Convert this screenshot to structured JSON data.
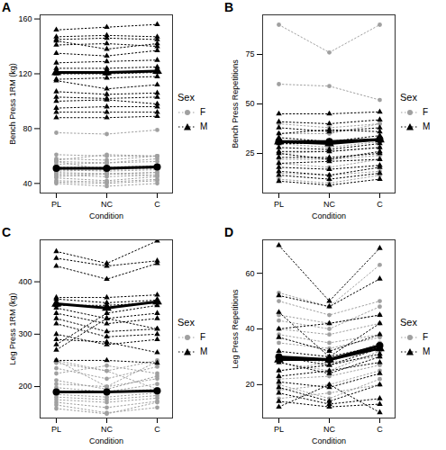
{
  "chart_data": [
    {
      "type": "line",
      "title": "A",
      "x_label": "Condition",
      "y_label": "Bench Press 1RM (kg)",
      "categories": [
        "PL",
        "NC",
        "C"
      ],
      "ylim": [
        33,
        163
      ],
      "yticks": [
        40,
        80,
        120,
        160
      ],
      "legend": "right",
      "legend_title": "Sex",
      "series": [
        {
          "name": "F",
          "color": "#a0a0a0",
          "marker": "circle",
          "line_style": "dotted",
          "values": [
            [
              77,
              76,
              79
            ],
            [
              61,
              60,
              60
            ],
            [
              58,
              57,
              60
            ],
            [
              57,
              61,
              60
            ],
            [
              56,
              55,
              58
            ],
            [
              56,
              50,
              53
            ],
            [
              54,
              55,
              56
            ],
            [
              52,
              52,
              53
            ],
            [
              50,
              51,
              51
            ],
            [
              50,
              49,
              50
            ],
            [
              49,
              50,
              51
            ],
            [
              48,
              47,
              48
            ],
            [
              47,
              47,
              48
            ],
            [
              46,
              45,
              46
            ],
            [
              45,
              47,
              46
            ],
            [
              44,
              42,
              45
            ],
            [
              42,
              41,
              43
            ],
            [
              41,
              40,
              42
            ],
            [
              40,
              38,
              40
            ]
          ],
          "mean": [
            51,
            51,
            52
          ]
        },
        {
          "name": "M",
          "color": "#000000",
          "marker": "triangle",
          "line_style": "dotted",
          "values": [
            [
              152,
              154,
              156
            ],
            [
              147,
              148,
              147
            ],
            [
              145,
              146,
              145
            ],
            [
              144,
              138,
              142
            ],
            [
              141,
              142,
              140
            ],
            [
              135,
              133,
              137
            ],
            [
              128,
              129,
              130
            ],
            [
              124,
              124,
              125
            ],
            [
              120,
              120,
              121
            ],
            [
              116,
              117,
              118
            ],
            [
              115,
              109,
              112
            ],
            [
              107,
              105,
              106
            ],
            [
              103,
              102,
              103
            ],
            [
              100,
              101,
              98
            ],
            [
              95,
              96,
              96
            ],
            [
              92,
              92,
              92
            ],
            [
              88,
              88,
              89
            ]
          ],
          "mean": [
            121,
            121,
            122
          ]
        }
      ]
    },
    {
      "type": "line",
      "title": "B",
      "x_label": "Condition",
      "y_label": "Bench Press Repetitions",
      "categories": [
        "PL",
        "NC",
        "C"
      ],
      "ylim": [
        5,
        95
      ],
      "yticks": [
        25,
        50,
        75
      ],
      "legend": "right",
      "legend_title": "Sex",
      "series": [
        {
          "name": "F",
          "color": "#a0a0a0",
          "marker": "circle",
          "line_style": "dotted",
          "values": [
            [
              90,
              76,
              90
            ],
            [
              60,
              59,
              52
            ],
            [
              40,
              38,
              40
            ],
            [
              35,
              35,
              40
            ],
            [
              30,
              28,
              31
            ],
            [
              25,
              26,
              28
            ],
            [
              22,
              22,
              24
            ],
            [
              20,
              18,
              22
            ],
            [
              15,
              14,
              16
            ],
            [
              12,
              10,
              14
            ]
          ],
          "mean": [
            31,
            31,
            32
          ]
        },
        {
          "name": "M",
          "color": "#000000",
          "marker": "triangle",
          "line_style": "dotted",
          "values": [
            [
              45,
              45,
              46
            ],
            [
              41,
              40,
              42
            ],
            [
              38,
              36,
              38
            ],
            [
              35,
              37,
              36
            ],
            [
              33,
              31,
              34
            ],
            [
              30,
              30,
              32
            ],
            [
              28,
              27,
              30
            ],
            [
              26,
              26,
              28
            ],
            [
              25,
              22,
              26
            ],
            [
              23,
              23,
              25
            ],
            [
              20,
              21,
              22
            ],
            [
              18,
              17,
              19
            ],
            [
              16,
              14,
              18
            ],
            [
              14,
              12,
              15
            ],
            [
              11,
              9,
              12
            ]
          ],
          "mean": [
            31,
            30,
            32
          ]
        }
      ]
    },
    {
      "type": "line",
      "title": "C",
      "x_label": "Condition",
      "y_label": "Leg Press 1RM (kg)",
      "categories": [
        "PL",
        "NC",
        "C"
      ],
      "ylim": [
        140,
        480
      ],
      "yticks": [
        200,
        300,
        400
      ],
      "legend": "right",
      "legend_title": "Sex",
      "series": [
        {
          "name": "F",
          "color": "#a0a0a0",
          "marker": "circle",
          "line_style": "dotted",
          "values": [
            [
              250,
              200,
              248
            ],
            [
              250,
              230,
              195
            ],
            [
              245,
              230,
              250
            ],
            [
              235,
              215,
              238
            ],
            [
              225,
              240,
              225
            ],
            [
              212,
              195,
              220
            ],
            [
              205,
              200,
              215
            ],
            [
              198,
              190,
              205
            ],
            [
              192,
              190,
              195
            ],
            [
              185,
              180,
              188
            ],
            [
              180,
              175,
              183
            ],
            [
              175,
              170,
              178
            ],
            [
              170,
              160,
              172
            ],
            [
              165,
              150,
              160
            ],
            [
              158,
              148,
              170
            ]
          ],
          "mean": [
            190,
            190,
            192
          ]
        },
        {
          "name": "M",
          "color": "#000000",
          "marker": "triangle",
          "line_style": "dotted",
          "values": [
            [
              458,
              435,
              478
            ],
            [
              445,
              430,
              440
            ],
            [
              430,
              405,
              435
            ],
            [
              370,
              370,
              375
            ],
            [
              367,
              360,
              365
            ],
            [
              355,
              355,
              360
            ],
            [
              350,
              330,
              340
            ],
            [
              340,
              320,
              330
            ],
            [
              330,
              305,
              310
            ],
            [
              320,
              295,
              300
            ],
            [
              300,
              280,
              290
            ],
            [
              290,
              285,
              265
            ],
            [
              280,
              340,
              355
            ],
            [
              270,
              330,
              310
            ],
            [
              250,
              250,
              245
            ]
          ],
          "mean": [
            358,
            350,
            362
          ]
        }
      ]
    },
    {
      "type": "line",
      "title": "D",
      "x_label": "Condition",
      "y_label": "Leg Press Repetitions",
      "categories": [
        "PL",
        "NC",
        "C"
      ],
      "ylim": [
        8,
        72
      ],
      "yticks": [
        20,
        40,
        60
      ],
      "legend": "right",
      "legend_title": "Sex",
      "series": [
        {
          "name": "F",
          "color": "#a0a0a0",
          "marker": "circle",
          "line_style": "dotted",
          "values": [
            [
              53,
              48,
              63
            ],
            [
              50,
              45,
              50
            ],
            [
              45,
              42,
              45
            ],
            [
              43,
              40,
              48
            ],
            [
              40,
              38,
              42
            ],
            [
              38,
              35,
              38
            ],
            [
              35,
              33,
              37
            ],
            [
              30,
              28,
              35
            ],
            [
              28,
              25,
              32
            ],
            [
              25,
              28,
              30
            ],
            [
              22,
              23,
              27
            ],
            [
              20,
              15,
              22
            ],
            [
              18,
              20,
              25
            ],
            [
              15,
              17,
              20
            ]
          ],
          "mean": [
            30,
            29,
            34
          ]
        },
        {
          "name": "M",
          "color": "#000000",
          "marker": "triangle",
          "line_style": "dotted",
          "values": [
            [
              70,
              50,
              69
            ],
            [
              52,
              48,
              58
            ],
            [
              46,
              30,
              42
            ],
            [
              40,
              42,
              45
            ],
            [
              37,
              32,
              38
            ],
            [
              32,
              30,
              34
            ],
            [
              30,
              27,
              33
            ],
            [
              28,
              24,
              30
            ],
            [
              25,
              27,
              31
            ],
            [
              23,
              25,
              28
            ],
            [
              21,
              19,
              24
            ],
            [
              19,
              14,
              20
            ],
            [
              17,
              13,
              15
            ],
            [
              14,
              12,
              13
            ],
            [
              12,
              20,
              10
            ]
          ],
          "mean": [
            29,
            29,
            33
          ]
        }
      ]
    }
  ]
}
